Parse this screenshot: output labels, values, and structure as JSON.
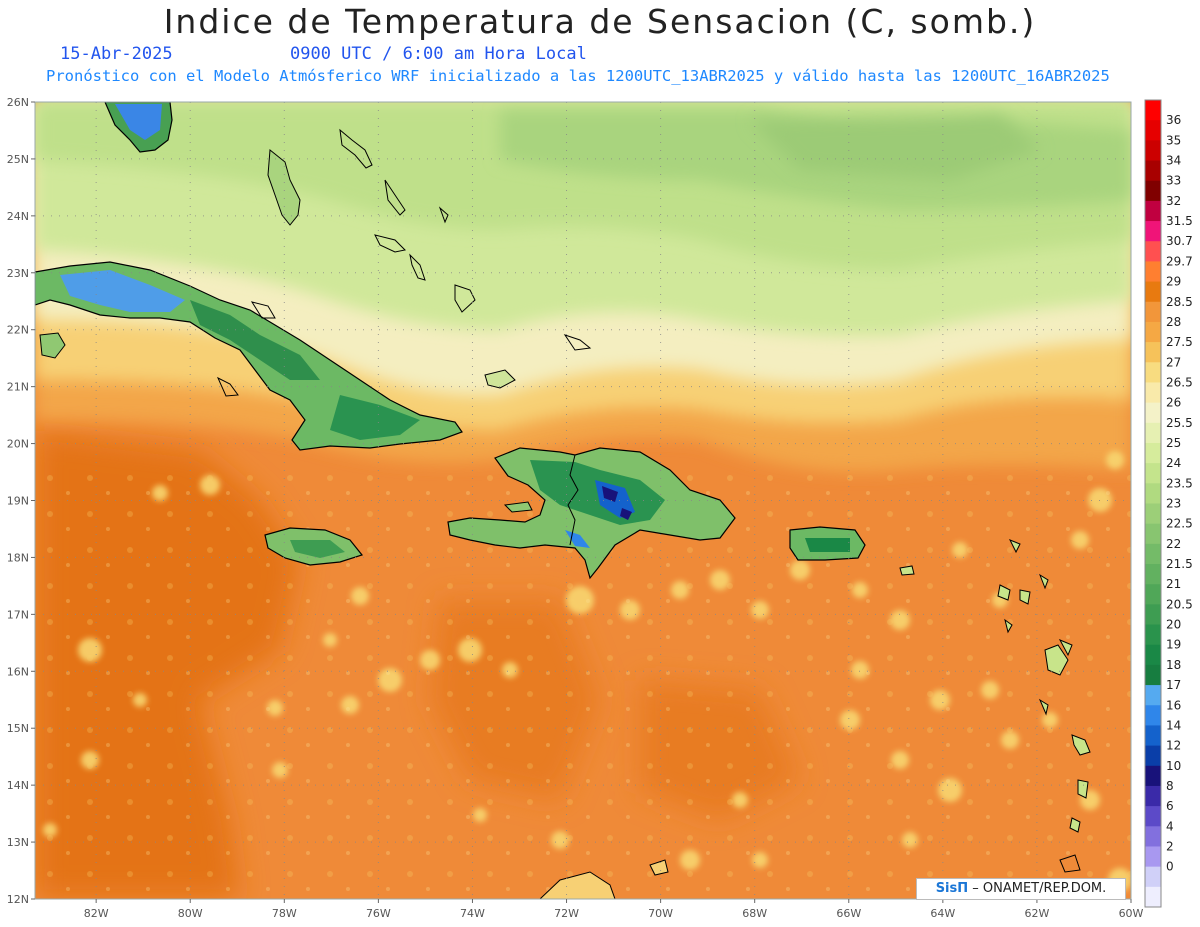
{
  "header": {
    "title": "Indice de Temperatura de Sensacion (C, somb.)",
    "date": "15-Abr-2025",
    "time": "0900 UTC / 6:00 am Hora Local",
    "model_info": "Pronóstico con el Modelo Atmósferico WRF inicializado a las 1200UTC_13ABR2025 y válido hasta las  1200UTC_16ABR2025"
  },
  "axes": {
    "lat_labels": [
      "26N",
      "25N",
      "24N",
      "23N",
      "22N",
      "21N",
      "20N",
      "19N",
      "18N",
      "17N",
      "16N",
      "15N",
      "14N",
      "13N",
      "12N"
    ],
    "lat_values": [
      26,
      25,
      24,
      23,
      22,
      21,
      20,
      19,
      18,
      17,
      16,
      15,
      14,
      13,
      12
    ],
    "lon_labels": [
      "82W",
      "80W",
      "78W",
      "76W",
      "74W",
      "72W",
      "70W",
      "68W",
      "66W",
      "64W",
      "62W",
      "60W"
    ],
    "lon_values": [
      -82,
      -80,
      -78,
      -76,
      -74,
      -72,
      -70,
      -68,
      -66,
      -64,
      -62,
      -60
    ],
    "lon_range": [
      -83.3,
      -60
    ],
    "lat_range": [
      12,
      26
    ]
  },
  "legend": {
    "labels": [
      "36",
      "35",
      "34",
      "33",
      "32",
      "31.5",
      "30.7",
      "29.7",
      "29",
      "28.5",
      "28",
      "27.5",
      "27",
      "26.5",
      "26",
      "25.5",
      "25",
      "24",
      "23.5",
      "23",
      "22.5",
      "22",
      "21.5",
      "21",
      "20.5",
      "20",
      "19",
      "18",
      "17",
      "16",
      "14",
      "12",
      "10",
      "8",
      "6",
      "4",
      "2",
      "0"
    ],
    "colors": [
      "#ff0000",
      "#e60000",
      "#cc0000",
      "#a80000",
      "#800000",
      "#c00040",
      "#f01478",
      "#ff5050",
      "#ff7f30",
      "#e87a10",
      "#f2963a",
      "#f5a844",
      "#f6c25a",
      "#f8dc80",
      "#f9eaaa",
      "#f4f2c8",
      "#e6f0b2",
      "#d6ec9c",
      "#c4e48c",
      "#b0da80",
      "#9ccf78",
      "#88c570",
      "#74bb68",
      "#62b160",
      "#50a758",
      "#3e9d52",
      "#2a934c",
      "#1a8846",
      "#177d40",
      "#55aaf0",
      "#2f86ea",
      "#1462cc",
      "#0a3ea8",
      "#18127a",
      "#3a2aa8",
      "#5c4ac8",
      "#8270de",
      "#a898f0",
      "#d0d0f8",
      "#eeeefe"
    ]
  },
  "credit": {
    "brand": "SisΠ",
    "text": "– ONAMET/REP.DOM."
  }
}
